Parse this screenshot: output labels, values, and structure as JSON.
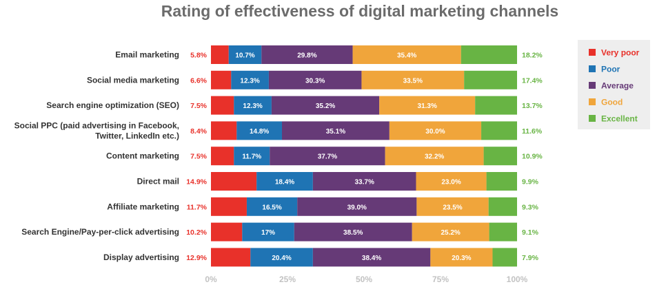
{
  "chart_data": {
    "type": "bar",
    "orientation": "horizontal",
    "stacked": true,
    "title": "Rating of effectiveness of digital marketing channels",
    "categories": [
      [
        "Email marketing"
      ],
      [
        "Social media marketing"
      ],
      [
        "Search engine optimization (SEO)"
      ],
      [
        "Social PPC (paid advertising in Facebook,",
        "Twitter, LinkedIn etc.)"
      ],
      [
        "Content marketing"
      ],
      [
        "Direct mail"
      ],
      [
        "Affiliate marketing"
      ],
      [
        "Search Engine/Pay-per-click advertising"
      ],
      [
        "Display advertising"
      ]
    ],
    "series": [
      {
        "name": "Very poor",
        "color": "#e8312a",
        "values": [
          5.8,
          6.6,
          7.5,
          8.4,
          7.5,
          14.9,
          11.7,
          10.2,
          12.9
        ],
        "labels": [
          "5.8%",
          "6.6%",
          "7.5%",
          "8.4%",
          "7.5%",
          "14.9%",
          "11.7%",
          "10.2%",
          "12.9%"
        ]
      },
      {
        "name": "Poor",
        "color": "#1f74b4",
        "values": [
          10.7,
          12.3,
          12.3,
          14.8,
          11.7,
          18.4,
          16.5,
          17,
          20.4
        ],
        "labels": [
          "10.7%",
          "12.3%",
          "12.3%",
          "14.8%",
          "11.7%",
          "18.4%",
          "16.5%",
          "17%",
          "20.4%"
        ]
      },
      {
        "name": "Average",
        "color": "#663a77",
        "values": [
          29.8,
          30.3,
          35.2,
          35.1,
          37.7,
          33.7,
          39.0,
          38.5,
          38.4
        ],
        "labels": [
          "29.8%",
          "30.3%",
          "35.2%",
          "35.1%",
          "37.7%",
          "33.7%",
          "39.0%",
          "38.5%",
          "38.4%"
        ]
      },
      {
        "name": "Good",
        "color": "#f0a53b",
        "values": [
          35.4,
          33.5,
          31.3,
          30.0,
          32.2,
          23.0,
          23.5,
          25.2,
          20.3
        ],
        "labels": [
          "35.4%",
          "33.5%",
          "31.3%",
          "30.0%",
          "32.2%",
          "23.0%",
          "23.5%",
          "25.2%",
          "20.3%"
        ]
      },
      {
        "name": "Excellent",
        "color": "#68b444",
        "values": [
          18.2,
          17.4,
          13.7,
          11.6,
          10.9,
          9.9,
          9.3,
          9.1,
          7.9
        ],
        "labels": [
          "18.2%",
          "17.4%",
          "13.7%",
          "11.6%",
          "10.9%",
          "9.9%",
          "9.3%",
          "9.1%",
          "7.9%"
        ]
      }
    ],
    "xlim": [
      0,
      100
    ],
    "x_ticks": [
      0,
      25,
      50,
      75,
      100
    ],
    "x_tick_labels": [
      "0%",
      "25%",
      "50%",
      "75%",
      "100%"
    ],
    "xlabel": "",
    "ylabel": "",
    "grid": false,
    "legend_position": "top-right",
    "legend_background": "#eeeeee"
  }
}
